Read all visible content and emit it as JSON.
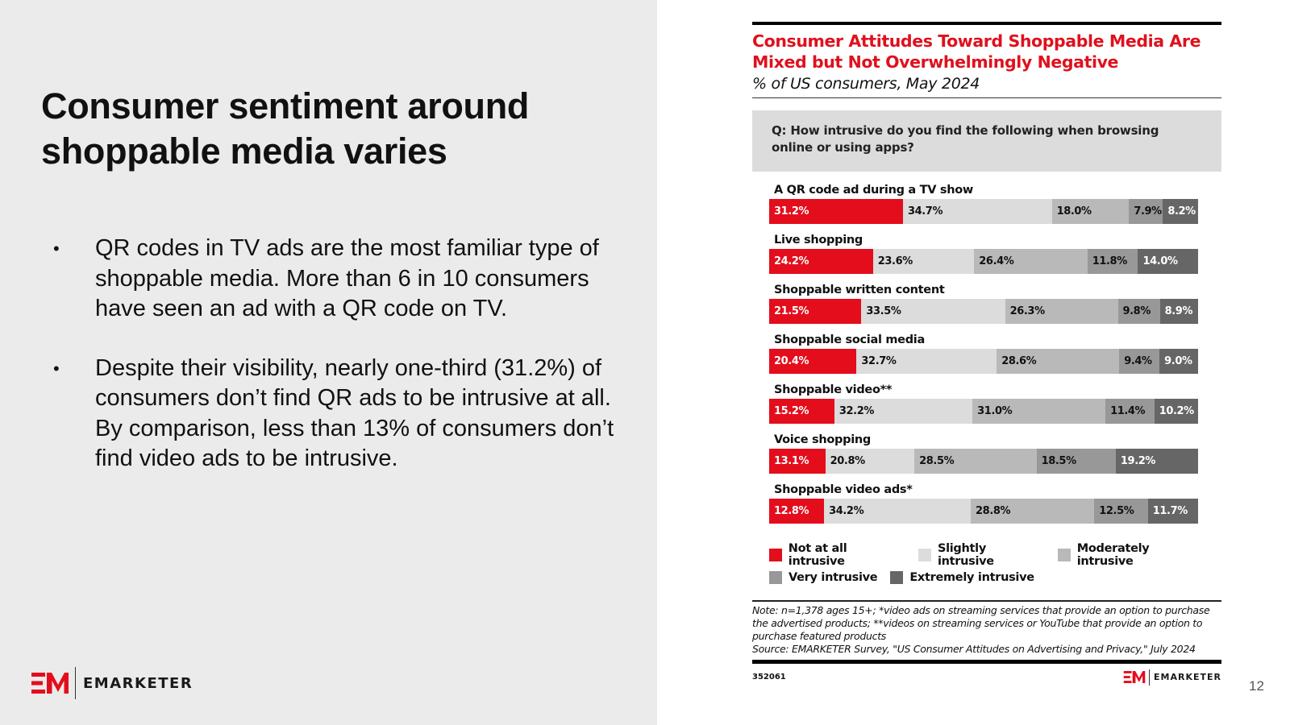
{
  "slide": {
    "title": "Consumer sentiment around shoppable media varies",
    "bullets": [
      "QR codes in TV ads are the most familiar type of shoppable media. More than 6 in 10 consumers have seen an ad with a QR code on TV.",
      "Despite their visibility, nearly one-third (31.2%) of consumers don’t find QR ads to be intrusive at all. By comparison, less than 13% of consumers don’t find video ads to be intrusive."
    ],
    "bullet_glyph": "•",
    "logo_text": "EMARKETER",
    "page_number": "12"
  },
  "colors": {
    "brand_red": "#e40d1c",
    "left_background": "#ebebeb"
  },
  "chart_data": {
    "type": "bar",
    "orientation": "horizontal-stacked-100",
    "title": "Consumer Attitudes Toward Shoppable Media Are Mixed but Not Overwhelmingly Negative",
    "subtitle": "% of US consumers, May 2024",
    "question": "Q: How intrusive do you find the following when browsing online or using apps?",
    "xlabel": "",
    "ylabel": "",
    "xlim": [
      0,
      100
    ],
    "grid": false,
    "legend_position": "bottom",
    "categories": [
      "A QR code ad during a TV show",
      "Live shopping",
      "Shoppable written content",
      "Shoppable social media",
      "Shoppable video**",
      "Voice shopping",
      "Shoppable video ads*"
    ],
    "series": [
      {
        "name": "Not at all intrusive",
        "color": "#e40d1c",
        "text_color": "#ffffff",
        "values": [
          31.2,
          24.2,
          21.5,
          20.4,
          15.2,
          13.1,
          12.8
        ]
      },
      {
        "name": "Slightly intrusive",
        "color": "#dcdcdc",
        "text_color": "#111111",
        "values": [
          34.7,
          23.6,
          33.5,
          32.7,
          32.2,
          20.8,
          34.2
        ]
      },
      {
        "name": "Moderately intrusive",
        "color": "#b9b9b9",
        "text_color": "#111111",
        "values": [
          18.0,
          26.4,
          26.3,
          28.6,
          31.0,
          28.5,
          28.8
        ]
      },
      {
        "name": "Very intrusive",
        "color": "#989898",
        "text_color": "#111111",
        "values": [
          7.9,
          11.8,
          9.8,
          9.4,
          11.4,
          18.5,
          12.5
        ]
      },
      {
        "name": "Extremely intrusive",
        "color": "#666666",
        "text_color": "#ffffff",
        "values": [
          8.2,
          14.0,
          8.9,
          9.0,
          10.2,
          19.2,
          11.7
        ]
      }
    ],
    "legend_rows": [
      [
        "Not at all intrusive",
        "Slightly intrusive",
        "Moderately intrusive"
      ],
      [
        "Very intrusive",
        "Extremely intrusive"
      ]
    ],
    "note": "Note: n=1,378 ages 15+; *video ads on streaming services that provide an option to purchase the advertised products; **videos on streaming services or YouTube that provide an option to purchase featured products",
    "source": "Source: EMARKETER Survey, \"US Consumer Attitudes on Advertising and Privacy,\" July 2024",
    "chart_id": "352061",
    "logo_text": "EMARKETER"
  }
}
